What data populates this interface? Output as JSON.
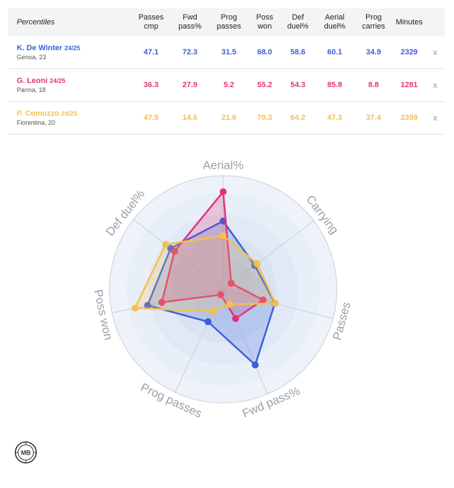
{
  "table": {
    "header_first": "Percentiles",
    "columns": [
      "Passes cmp",
      "Fwd pass%",
      "Prog passes",
      "Poss won",
      "Def duel%",
      "Aerial duel%",
      "Prog carries",
      "Minutes"
    ],
    "close_glyph": "x",
    "rows": [
      {
        "name": "K. De Winter",
        "season": "24/25",
        "club": "Genoa, 23",
        "color": "#3b5fd9",
        "values": [
          "47.1",
          "72.3",
          "31.5",
          "68.0",
          "58.6",
          "60.1",
          "34.9",
          "2329"
        ]
      },
      {
        "name": "G. Leoni",
        "season": "24/25",
        "club": "Parma, 18",
        "color": "#e0337a",
        "values": [
          "36.3",
          "27.9",
          "5.2",
          "55.2",
          "54.3",
          "85.8",
          "8.8",
          "1281"
        ]
      },
      {
        "name": "P. Comuzzo",
        "season": "24/25",
        "club": "Fiorentina, 20",
        "color": "#f5c04a",
        "values": [
          "47.5",
          "14.6",
          "21.6",
          "79.3",
          "64.2",
          "47.3",
          "37.4",
          "2399"
        ]
      }
    ]
  },
  "chart_data": {
    "type": "radar",
    "axes": [
      "Aerial%",
      "Carrying",
      "Passes",
      "Fwd pass%",
      "Prog passes",
      "Poss won",
      "Def duel%"
    ],
    "range": [
      0,
      100
    ],
    "series": [
      {
        "name": "K. De Winter",
        "color": "#3b5fd9",
        "values": [
          60.1,
          34.9,
          47.1,
          72.3,
          31.5,
          68.0,
          58.6
        ]
      },
      {
        "name": "G. Leoni",
        "color": "#e0337a",
        "values": [
          85.8,
          8.8,
          36.3,
          27.9,
          5.2,
          55.2,
          54.3
        ]
      },
      {
        "name": "P. Comuzzo",
        "color": "#f5c04a",
        "values": [
          47.3,
          37.4,
          47.5,
          14.6,
          21.6,
          79.3,
          64.2
        ]
      }
    ]
  },
  "logo": {
    "text": "MB"
  }
}
